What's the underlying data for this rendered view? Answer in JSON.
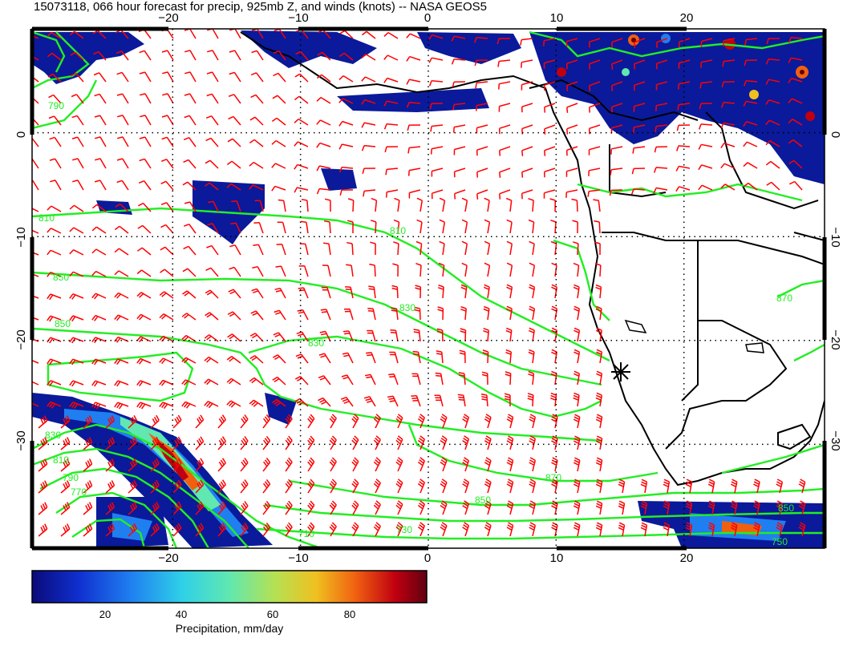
{
  "title": "15073118, 066 hour forecast for precip, 925mb Z, and winds (knots) -- NASA GEOS5",
  "map": {
    "lon_range": [
      -31,
      31
    ],
    "lat_range": [
      -40,
      10
    ],
    "lon_ticks": [
      -20,
      -10,
      0,
      10,
      20
    ],
    "lat_ticks": [
      0,
      -10,
      -20,
      -30
    ],
    "lon_labels": [
      "−20",
      "−10",
      "0",
      "10",
      "20"
    ],
    "lat_labels": [
      "0",
      "−10",
      "−20",
      "−30"
    ],
    "gridlines": true,
    "colors": {
      "wind_barbs": "#ff0000",
      "height_contours": "#22ee22",
      "coastlines": "#000000",
      "station_marker": "#000000"
    }
  },
  "contours": {
    "label_color": "#22ee22",
    "labels": [
      "790",
      "810",
      "810",
      "830",
      "830",
      "850",
      "850",
      "870",
      "850",
      "830",
      "810",
      "790",
      "770",
      "750",
      "730",
      "710",
      "850",
      "870"
    ]
  },
  "station": {
    "name": "star-marker",
    "lon": 15,
    "lat": -23
  },
  "colorbar": {
    "tick_labels": [
      "20",
      "40",
      "60",
      "80"
    ],
    "range": [
      0,
      100
    ],
    "label": "Precipitation, mm/day",
    "colors": [
      "#0a0a7a",
      "#1030d0",
      "#1f7ff0",
      "#2fd0e8",
      "#60e8b0",
      "#b8e050",
      "#f0c020",
      "#f06010",
      "#c00010",
      "#600010"
    ]
  }
}
